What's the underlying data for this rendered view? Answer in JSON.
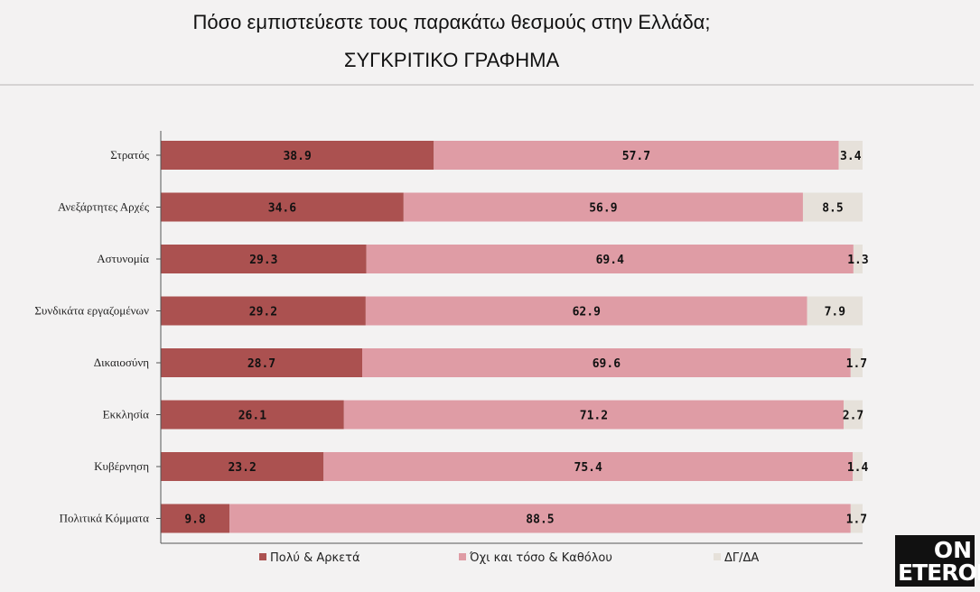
{
  "header": {
    "title": "Πόσο εμπιστεύεστε τους παρακάτω θεσμούς στην Ελλάδα;",
    "subtitle": "ΣΥΓΚΡΙΤΙΚΟ ΓΡΑΦΗΜΑ"
  },
  "logo": {
    "line1": "ON",
    "line2": "ETERON"
  },
  "colors": {
    "series1": "#ab5150",
    "series2": "#df9ca5",
    "series3": "#e6e1da"
  },
  "chart_data": {
    "type": "bar",
    "orientation": "horizontal",
    "stacked": true,
    "title": "Πόσο εμπιστεύεστε τους παρακάτω θεσμούς στην Ελλάδα;",
    "subtitle": "ΣΥΓΚΡΙΤΙΚΟ ΓΡΑΦΗΜΑ",
    "categories": [
      "Στρατός",
      "Ανεξάρτητες Αρχές",
      "Αστυνομία",
      "Συνδικάτα εργαζομένων",
      "Δικαιοσύνη",
      "Εκκλησία",
      "Κυβέρνηση",
      "Πολιτικά Κόμματα"
    ],
    "series": [
      {
        "name": "Πολύ & Αρκετά",
        "values": [
          38.9,
          34.6,
          29.3,
          29.2,
          28.7,
          26.1,
          23.2,
          9.8
        ]
      },
      {
        "name": "Όχι και τόσο & Καθόλου",
        "values": [
          57.7,
          56.9,
          69.4,
          62.9,
          69.6,
          71.2,
          75.4,
          88.5
        ]
      },
      {
        "name": "ΔΓ/ΔΑ",
        "values": [
          3.4,
          8.5,
          1.3,
          7.9,
          1.7,
          2.7,
          1.4,
          1.7
        ]
      }
    ],
    "xlim": [
      0,
      100
    ],
    "legend": "bottom",
    "grid": false
  }
}
